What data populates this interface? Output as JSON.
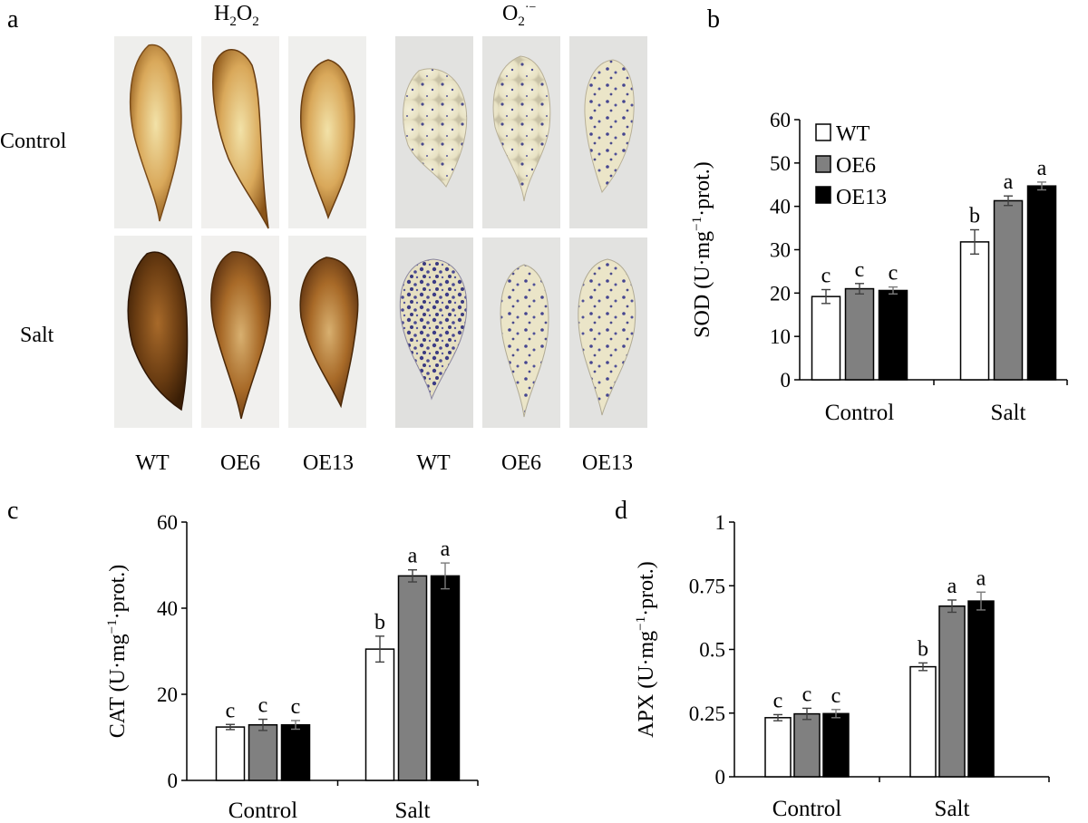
{
  "panel_labels": {
    "a": "a",
    "b": "b",
    "c": "c",
    "d": "d"
  },
  "panel_a": {
    "stain_headers": {
      "h2o2": "H2O2",
      "superoxide": "O2·−"
    },
    "row_labels": [
      "Control",
      "Salt"
    ],
    "column_labels": [
      "WT",
      "OE6",
      "OE13",
      "WT",
      "OE6",
      "OE13"
    ]
  },
  "legend": [
    "WT",
    "OE6",
    "OE13"
  ],
  "colors": {
    "WT": "#ffffff",
    "OE6": "#808080",
    "OE13": "#000000",
    "axis": "#000000",
    "error": "#404040"
  },
  "chart_data": [
    {
      "id": "b",
      "type": "bar",
      "ylabel": "SOD (U·mg−1·prot.)",
      "ylim": [
        0,
        60
      ],
      "yticks": [
        0,
        10,
        20,
        30,
        40,
        50,
        60
      ],
      "yticklabels": [
        "0",
        "10",
        "20",
        "30",
        "40",
        "50",
        "60"
      ],
      "categories": [
        "Control",
        "Salt"
      ],
      "legend": "top-left",
      "series": [
        {
          "name": "WT",
          "values": [
            19.2,
            31.8
          ],
          "errors": [
            1.6,
            2.8
          ],
          "letters": [
            "c",
            "b"
          ]
        },
        {
          "name": "OE6",
          "values": [
            21.0,
            41.3
          ],
          "errors": [
            1.2,
            1.1
          ],
          "letters": [
            "c",
            "a"
          ]
        },
        {
          "name": "OE13",
          "values": [
            20.6,
            44.7
          ],
          "errors": [
            0.8,
            0.9
          ],
          "letters": [
            "c",
            "a"
          ]
        }
      ]
    },
    {
      "id": "c",
      "type": "bar",
      "ylabel": "CAT (U·mg−1·prot.)",
      "ylim": [
        0,
        60
      ],
      "yticks": [
        0,
        20,
        40,
        60
      ],
      "yticklabels": [
        "0",
        "20",
        "40",
        "60"
      ],
      "categories": [
        "Control",
        "Salt"
      ],
      "series": [
        {
          "name": "WT",
          "values": [
            12.4,
            30.5
          ],
          "errors": [
            0.6,
            3.0
          ],
          "letters": [
            "c",
            "b"
          ]
        },
        {
          "name": "OE6",
          "values": [
            12.9,
            47.5
          ],
          "errors": [
            1.3,
            1.4
          ],
          "letters": [
            "c",
            "a"
          ]
        },
        {
          "name": "OE13",
          "values": [
            12.9,
            47.5
          ],
          "errors": [
            1.0,
            3.0
          ],
          "letters": [
            "c",
            "a"
          ]
        }
      ]
    },
    {
      "id": "d",
      "type": "bar",
      "ylabel": "APX (U·mg−1·prot.)",
      "ylim": [
        0,
        1
      ],
      "yticks": [
        0,
        0.25,
        0.5,
        0.75,
        1
      ],
      "yticklabels": [
        "0",
        "0.25",
        "0.5",
        "0.75",
        "1"
      ],
      "categories": [
        "Control",
        "Salt"
      ],
      "series": [
        {
          "name": "WT",
          "values": [
            0.232,
            0.432
          ],
          "errors": [
            0.012,
            0.015
          ],
          "letters": [
            "c",
            "b"
          ]
        },
        {
          "name": "OE6",
          "values": [
            0.247,
            0.67
          ],
          "errors": [
            0.022,
            0.024
          ],
          "letters": [
            "c",
            "a"
          ]
        },
        {
          "name": "OE13",
          "values": [
            0.248,
            0.69
          ],
          "errors": [
            0.016,
            0.035
          ],
          "letters": [
            "c",
            "a"
          ]
        }
      ]
    }
  ]
}
